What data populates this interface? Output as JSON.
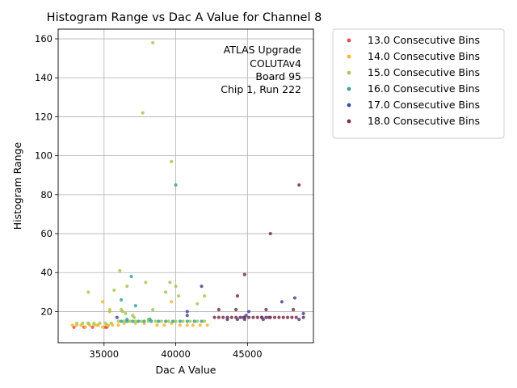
{
  "chart_data": {
    "type": "scatter",
    "title": "Histogram Range vs Dac A Value for Channel 8",
    "xlabel": "Dac A Value",
    "ylabel": "Histogram Range",
    "xlim": [
      31800,
      49600
    ],
    "ylim": [
      4,
      165
    ],
    "xticks": [
      35000,
      40000,
      45000
    ],
    "yticks": [
      20,
      40,
      60,
      80,
      100,
      120,
      140,
      160
    ],
    "grid": true,
    "legend_position": "outside-right",
    "annotation": [
      "ATLAS Upgrade",
      "COLUTAv4",
      "Board 95",
      "Chip 1, Run 222"
    ],
    "series": [
      {
        "name": "13.0 Consecutive Bins",
        "color": "#e84a4a",
        "x": [
          35200,
          32900,
          33600,
          34200,
          35100
        ],
        "y": [
          12,
          12,
          12,
          12,
          12
        ]
      },
      {
        "name": "14.0 Consecutive Bins",
        "color": "#f7b733",
        "x": [
          32800,
          33100,
          33400,
          33700,
          34000,
          34300,
          34600,
          34900,
          35300,
          35600,
          36000,
          36400,
          37200,
          37800,
          38700,
          39200,
          39700,
          40300,
          40800,
          41200,
          41700,
          42200,
          35400,
          34900,
          39700,
          33900,
          34500,
          35200
        ],
        "y": [
          13,
          13,
          13,
          12,
          13,
          13,
          13,
          12,
          13,
          13,
          13,
          14,
          14,
          14,
          13,
          13,
          14,
          13,
          13,
          13,
          13,
          13,
          21,
          25,
          25,
          14,
          13,
          13
        ],
        "__note": "values estimated"
      },
      {
        "name": "15.0 Consecutive Bins",
        "color": "#a7c957",
        "x": [
          33100,
          33500,
          33900,
          34300,
          34700,
          35100,
          35500,
          36000,
          36400,
          36800,
          37200,
          37600,
          38100,
          38600,
          39000,
          39500,
          40000,
          40500,
          41000,
          41500,
          42000,
          33900,
          35700,
          36100,
          36600,
          37900,
          38400,
          39300,
          39600,
          40000,
          37700,
          38400,
          39700,
          35400,
          36300,
          37000,
          38100,
          40200,
          41500,
          42000,
          36200,
          36500,
          37100
        ],
        "y": [
          14,
          14,
          14,
          14,
          14,
          14,
          14,
          15,
          15,
          15,
          15,
          15,
          15,
          15,
          15,
          15,
          15,
          15,
          15,
          15,
          15,
          30,
          31,
          41,
          33,
          35,
          158,
          30,
          35,
          33,
          122,
          21,
          97,
          20,
          20,
          18,
          16,
          28,
          24,
          28,
          21,
          19,
          17
        ]
      },
      {
        "name": "16.0 Consecutive Bins",
        "color": "#3aa68f",
        "x": [
          36200,
          36600,
          37000,
          37400,
          37800,
          38300,
          38800,
          39300,
          39800,
          40300,
          40800,
          41300,
          41800,
          36200,
          36900,
          37200,
          40000,
          38200,
          36600
        ],
        "y": [
          15,
          15,
          15,
          15,
          15,
          15,
          15,
          15,
          15,
          15,
          15,
          15,
          15,
          26,
          38,
          23,
          85,
          16,
          16
        ]
      },
      {
        "name": "17.0 Consecutive Bins",
        "color": "#3f4b9c",
        "x": [
          35900,
          40800,
          40800,
          41800,
          43600,
          44300,
          44700,
          44900,
          45100,
          46100,
          46500,
          47400,
          48300,
          48600,
          48900,
          44800,
          46000
        ],
        "y": [
          17,
          18,
          20,
          33,
          16,
          16,
          17,
          18,
          20,
          16,
          17,
          25,
          27,
          16,
          19,
          16,
          17
        ]
      },
      {
        "name": "18.0 Consecutive Bins",
        "color": "#7a2e4a",
        "x": [
          42700,
          43000,
          43300,
          43600,
          43900,
          44200,
          44500,
          44800,
          45100,
          45400,
          45700,
          46000,
          46300,
          46600,
          46900,
          47200,
          47500,
          47800,
          48100,
          48400,
          48900,
          43000,
          44200,
          44300,
          44800,
          46300,
          46600,
          48200,
          48600
        ],
        "y": [
          17,
          17,
          17,
          17,
          17,
          17,
          17,
          17,
          17,
          17,
          17,
          17,
          17,
          17,
          17,
          17,
          17,
          17,
          17,
          17,
          17,
          21,
          21,
          28,
          39,
          21,
          60,
          21,
          85
        ]
      }
    ]
  }
}
